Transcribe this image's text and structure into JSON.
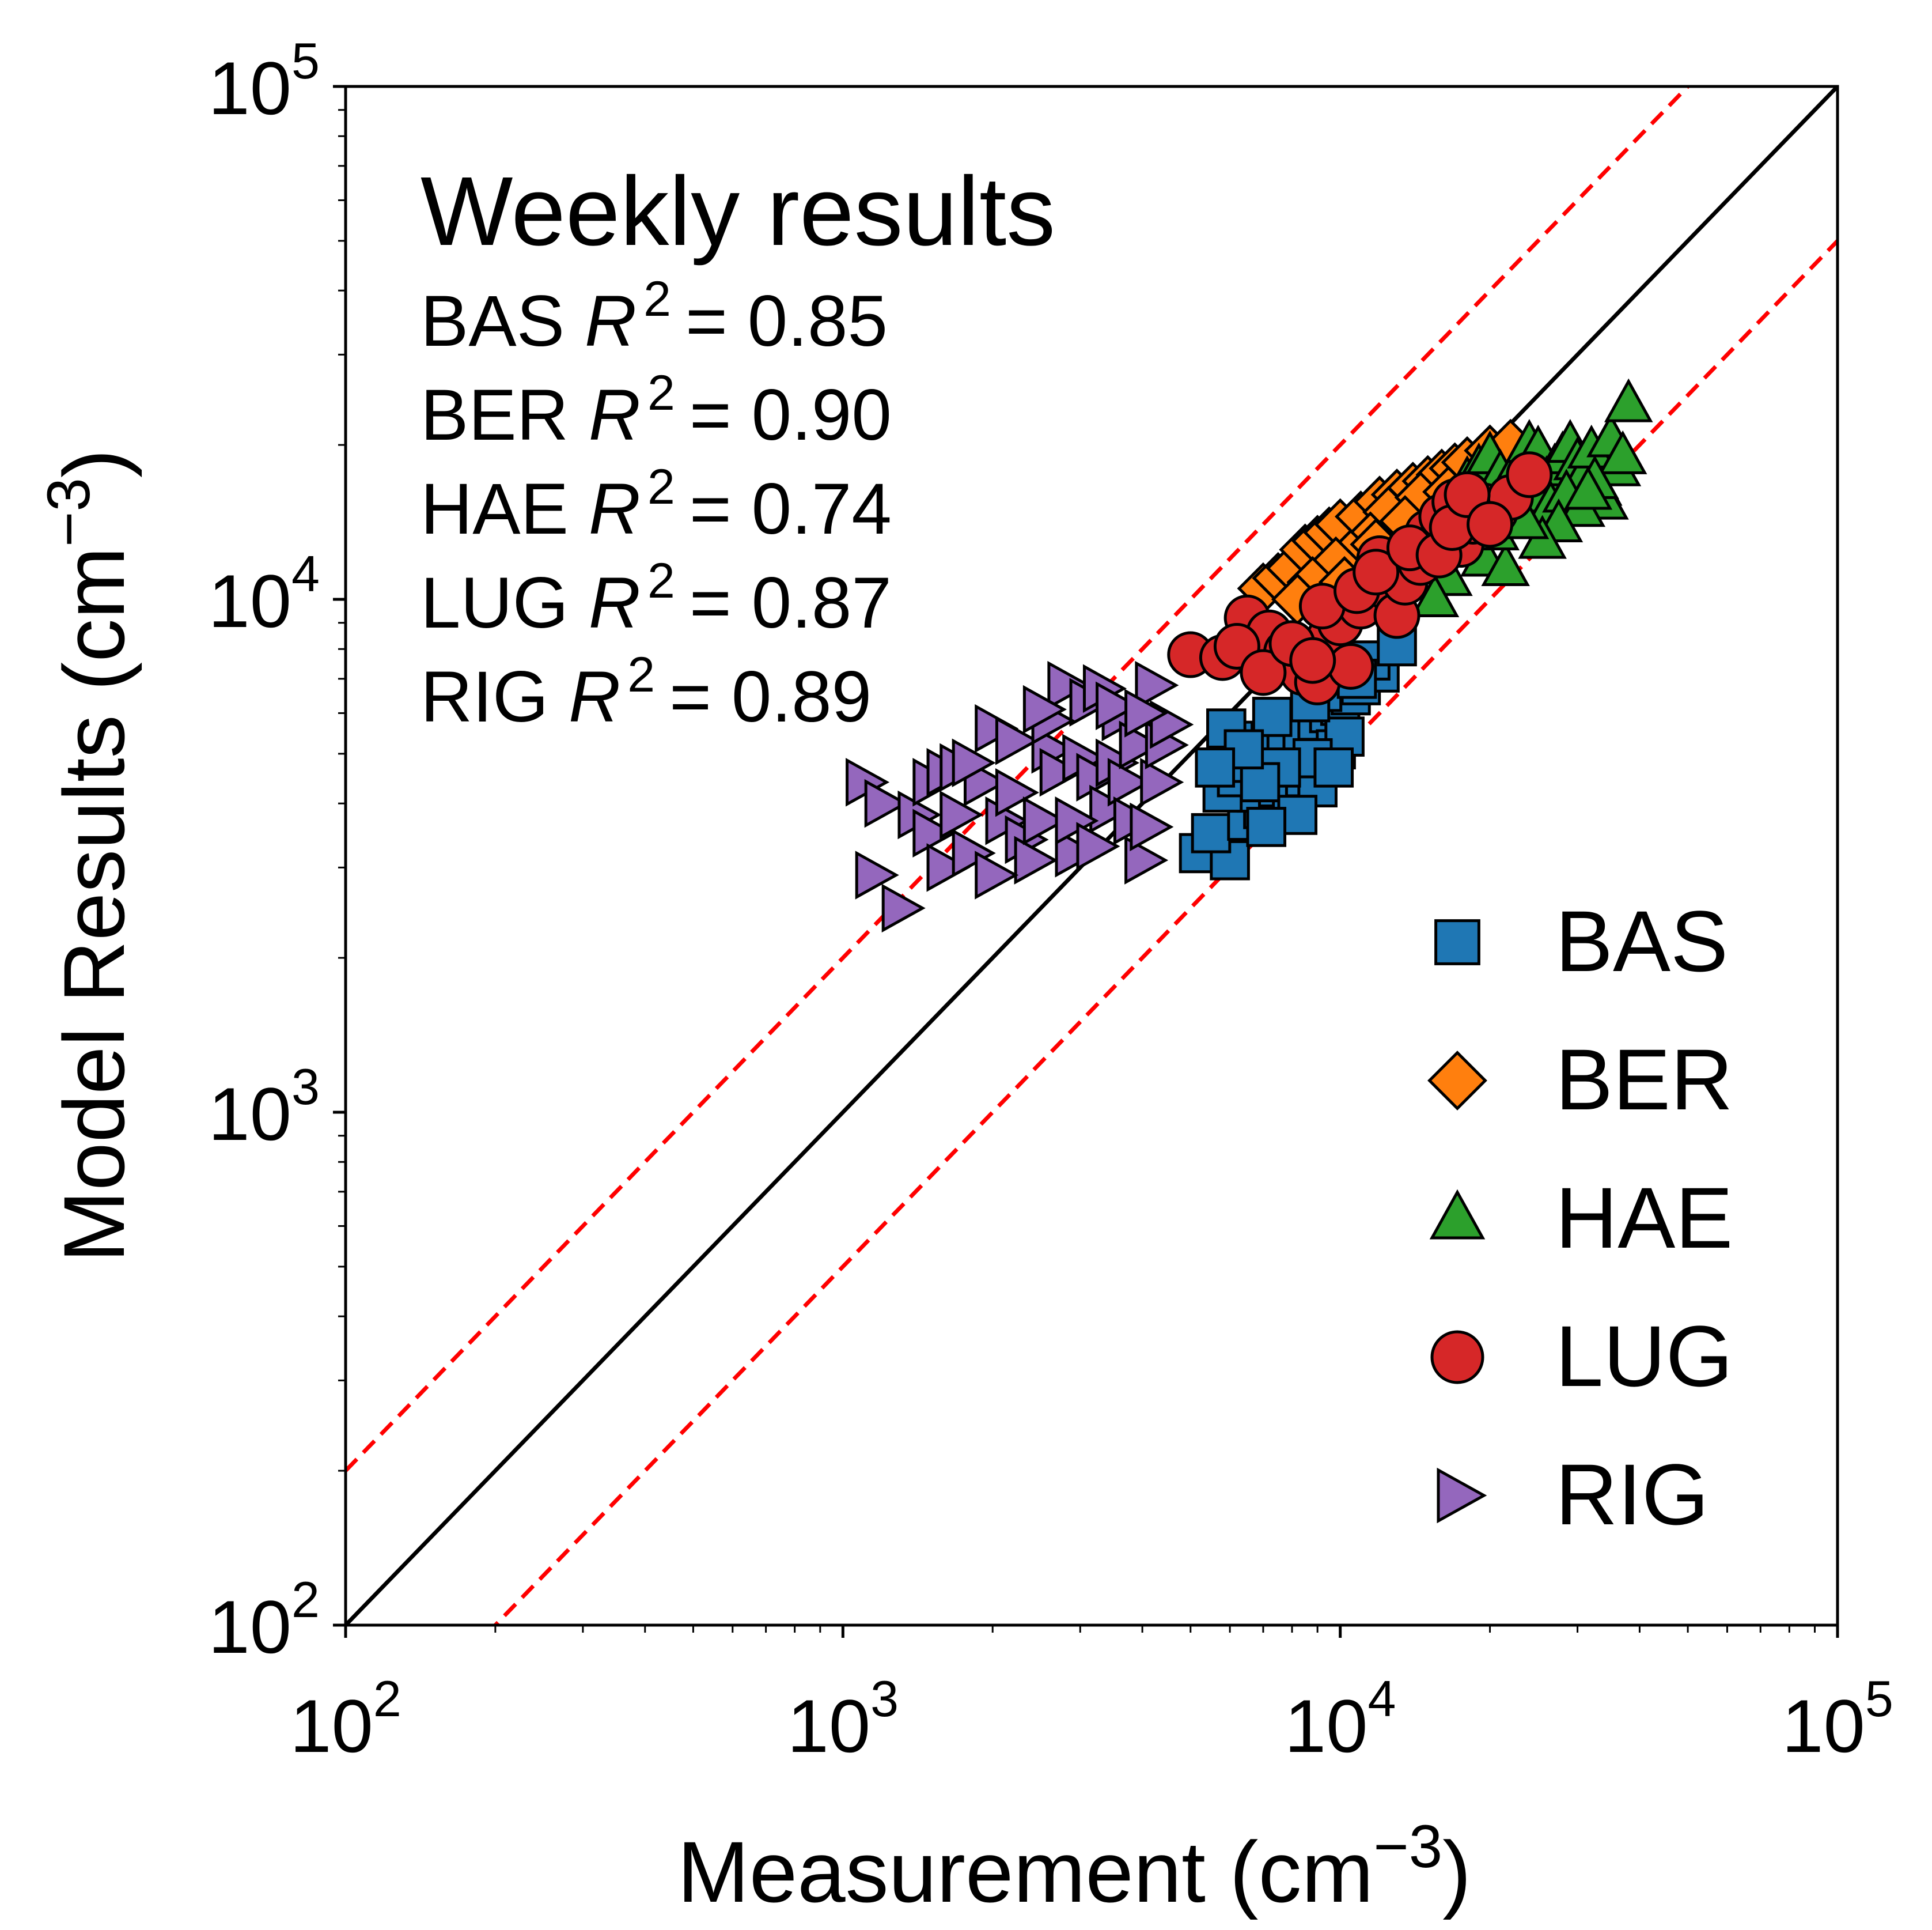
{
  "chart_data": {
    "type": "scatter",
    "title": "Weekly results",
    "xlabel": "Measurement (cm",
    "ylabel": "Model Results (cm",
    "label_unit_exponent": "−3",
    "label_close": ")",
    "x_scale": "log",
    "y_scale": "log",
    "xlim": [
      100,
      100000
    ],
    "ylim": [
      100,
      100000
    ],
    "grid": false,
    "legend_position": "lower-right",
    "x_ticks": [
      {
        "base": "10",
        "exp": "2",
        "value": 100
      },
      {
        "base": "10",
        "exp": "3",
        "value": 1000
      },
      {
        "base": "10",
        "exp": "4",
        "value": 10000
      },
      {
        "base": "10",
        "exp": "5",
        "value": 100000
      }
    ],
    "y_ticks": [
      {
        "base": "10",
        "exp": "2",
        "value": 100
      },
      {
        "base": "10",
        "exp": "3",
        "value": 1000
      },
      {
        "base": "10",
        "exp": "4",
        "value": 10000
      },
      {
        "base": "10",
        "exp": "5",
        "value": 100000
      }
    ],
    "reference_lines": [
      {
        "kind": "1:1",
        "factor": 1,
        "color": "#000000",
        "style": "solid"
      },
      {
        "kind": "factor-2-upper",
        "factor": 2,
        "color": "#ff0000",
        "style": "dashed"
      },
      {
        "kind": "factor-2-lower",
        "factor": 0.5,
        "color": "#ff0000",
        "style": "dashed"
      }
    ],
    "stats": [
      {
        "station": "BAS",
        "r_symbol": "R",
        "r_exp": "2",
        "eq": "= 0.85"
      },
      {
        "station": "BER",
        "r_symbol": "R",
        "r_exp": "2",
        "eq": "= 0.90"
      },
      {
        "station": "HAE",
        "r_symbol": "R",
        "r_exp": "2",
        "eq": "= 0.74"
      },
      {
        "station": "LUG",
        "r_symbol": "R",
        "r_exp": "2",
        "eq": "= 0.87"
      },
      {
        "station": "RIG",
        "r_symbol": "R",
        "r_exp": "2",
        "eq": "= 0.89"
      }
    ],
    "series": [
      {
        "name": "BAS",
        "marker": "square",
        "color": "#1f77b4",
        "points": [
          [
            5200,
            3200
          ],
          [
            6000,
            3100
          ],
          [
            5500,
            3500
          ],
          [
            6500,
            3700
          ],
          [
            7000,
            3900
          ],
          [
            6800,
            4200
          ],
          [
            7500,
            4300
          ],
          [
            8000,
            4000
          ],
          [
            8500,
            4500
          ],
          [
            9000,
            4300
          ],
          [
            5800,
            4200
          ],
          [
            6200,
            4500
          ],
          [
            6600,
            4800
          ],
          [
            7200,
            5000
          ],
          [
            7800,
            5200
          ],
          [
            8400,
            5500
          ],
          [
            9000,
            5800
          ],
          [
            9500,
            6000
          ],
          [
            10000,
            6200
          ],
          [
            10500,
            6500
          ],
          [
            11000,
            6800
          ],
          [
            12000,
            7200
          ],
          [
            11500,
            7600
          ],
          [
            13000,
            8100
          ],
          [
            9800,
            5100
          ],
          [
            10200,
            5400
          ],
          [
            8800,
            4900
          ],
          [
            7600,
            4700
          ],
          [
            6900,
            4400
          ],
          [
            6100,
            5300
          ],
          [
            5900,
            5600
          ],
          [
            9200,
            6600
          ],
          [
            8700,
            6300
          ],
          [
            7300,
            5900
          ],
          [
            6400,
            5100
          ],
          [
            10800,
            7000
          ],
          [
            5600,
            4700
          ],
          [
            8200,
            3800
          ],
          [
            7100,
            3600
          ],
          [
            9700,
            4700
          ]
        ]
      },
      {
        "name": "BER",
        "marker": "diamond",
        "color": "#ff7f0e",
        "points": [
          [
            7000,
            10500
          ],
          [
            7500,
            11000
          ],
          [
            8000,
            11500
          ],
          [
            8500,
            12500
          ],
          [
            9000,
            13000
          ],
          [
            9500,
            13500
          ],
          [
            10000,
            14000
          ],
          [
            11000,
            14500
          ],
          [
            12000,
            15500
          ],
          [
            13000,
            16000
          ],
          [
            14000,
            16500
          ],
          [
            15000,
            17000
          ],
          [
            16000,
            17500
          ],
          [
            17000,
            18000
          ],
          [
            18000,
            18500
          ],
          [
            20000,
            19500
          ],
          [
            22000,
            20000
          ],
          [
            12500,
            14800
          ],
          [
            11500,
            13200
          ],
          [
            10500,
            12200
          ],
          [
            9800,
            11800
          ],
          [
            8800,
            10800
          ],
          [
            15500,
            15200
          ],
          [
            14500,
            15800
          ],
          [
            13500,
            14200
          ],
          [
            16500,
            16200
          ],
          [
            19000,
            17200
          ],
          [
            8200,
            10000
          ],
          [
            10200,
            10800
          ],
          [
            11800,
            12800
          ]
        ]
      },
      {
        "name": "HAE",
        "marker": "triangle",
        "color": "#2ca02c",
        "points": [
          [
            18000,
            17000
          ],
          [
            19000,
            18000
          ],
          [
            20000,
            19000
          ],
          [
            21000,
            17500
          ],
          [
            22000,
            16500
          ],
          [
            23000,
            18500
          ],
          [
            24000,
            20000
          ],
          [
            25000,
            19500
          ],
          [
            26000,
            17000
          ],
          [
            27000,
            18000
          ],
          [
            28000,
            19000
          ],
          [
            29000,
            20000
          ],
          [
            30000,
            18500
          ],
          [
            31000,
            17500
          ],
          [
            32000,
            19500
          ],
          [
            33000,
            16500
          ],
          [
            34000,
            15500
          ],
          [
            35000,
            20500
          ],
          [
            36000,
            18000
          ],
          [
            37000,
            19000
          ],
          [
            38000,
            24000
          ],
          [
            17000,
            14000
          ],
          [
            18500,
            13000
          ],
          [
            19500,
            12000
          ],
          [
            21500,
            11500
          ],
          [
            16500,
            11000
          ],
          [
            15500,
            10000
          ],
          [
            20500,
            13500
          ],
          [
            22500,
            15000
          ],
          [
            24500,
            16000
          ],
          [
            26500,
            15200
          ],
          [
            28500,
            16000
          ],
          [
            30500,
            15000
          ],
          [
            32500,
            17000
          ],
          [
            27500,
            14000
          ],
          [
            25500,
            13000
          ],
          [
            23500,
            14200
          ],
          [
            31500,
            16200
          ]
        ]
      },
      {
        "name": "LUG",
        "marker": "circle",
        "color": "#d62728",
        "points": [
          [
            5000,
            7800
          ],
          [
            5800,
            7700
          ],
          [
            6500,
            9200
          ],
          [
            7200,
            8600
          ],
          [
            7800,
            7900
          ],
          [
            8400,
            7200
          ],
          [
            9000,
            6900
          ],
          [
            9500,
            8400
          ],
          [
            10000,
            9000
          ],
          [
            10500,
            7400
          ],
          [
            11000,
            9700
          ],
          [
            11500,
            10800
          ],
          [
            12000,
            12000
          ],
          [
            12500,
            10500
          ],
          [
            13000,
            9300
          ],
          [
            13500,
            10800
          ],
          [
            14500,
            11800
          ],
          [
            15000,
            13500
          ],
          [
            16000,
            14500
          ],
          [
            17000,
            15500
          ],
          [
            17500,
            12800
          ],
          [
            18500,
            14200
          ],
          [
            19500,
            15200
          ],
          [
            20500,
            14800
          ],
          [
            22000,
            15800
          ],
          [
            24000,
            17500
          ],
          [
            6200,
            8100
          ],
          [
            7000,
            7200
          ],
          [
            8000,
            8200
          ],
          [
            9200,
            9700
          ],
          [
            10800,
            10400
          ],
          [
            11800,
            11300
          ],
          [
            13800,
            12600
          ],
          [
            15800,
            12200
          ],
          [
            16800,
            13800
          ],
          [
            18000,
            16000
          ],
          [
            20000,
            14000
          ],
          [
            8800,
            7600
          ]
        ]
      },
      {
        "name": "RIG",
        "marker": "triangle-right",
        "color": "#9467bd",
        "points": [
          [
            1100,
            4400
          ],
          [
            1150,
            2900
          ],
          [
            1300,
            2500
          ],
          [
            1200,
            4000
          ],
          [
            1400,
            3800
          ],
          [
            1500,
            4400
          ],
          [
            1600,
            4600
          ],
          [
            1700,
            4700
          ],
          [
            1500,
            3500
          ],
          [
            1600,
            3000
          ],
          [
            1800,
            3200
          ],
          [
            1900,
            4400
          ],
          [
            2000,
            5600
          ],
          [
            2100,
            3700
          ],
          [
            2200,
            4200
          ],
          [
            2300,
            3400
          ],
          [
            2400,
            3100
          ],
          [
            2500,
            3700
          ],
          [
            2600,
            5100
          ],
          [
            2700,
            4600
          ],
          [
            2800,
            6800
          ],
          [
            2900,
            3200
          ],
          [
            3000,
            4900
          ],
          [
            3100,
            6300
          ],
          [
            3200,
            4500
          ],
          [
            3300,
            6700
          ],
          [
            3400,
            3900
          ],
          [
            3500,
            4800
          ],
          [
            3600,
            5900
          ],
          [
            3700,
            4400
          ],
          [
            3800,
            3700
          ],
          [
            3900,
            5200
          ],
          [
            4000,
            3100
          ],
          [
            4100,
            3600
          ],
          [
            4200,
            6800
          ],
          [
            4300,
            4400
          ],
          [
            4400,
            5200
          ],
          [
            4500,
            5700
          ],
          [
            1800,
            4800
          ],
          [
            2200,
            5300
          ],
          [
            2600,
            5800
          ],
          [
            2900,
            3700
          ],
          [
            3200,
            3300
          ],
          [
            2000,
            2900
          ],
          [
            1700,
            3800
          ],
          [
            2500,
            6100
          ],
          [
            3500,
            6200
          ],
          [
            4000,
            6000
          ]
        ]
      }
    ]
  }
}
